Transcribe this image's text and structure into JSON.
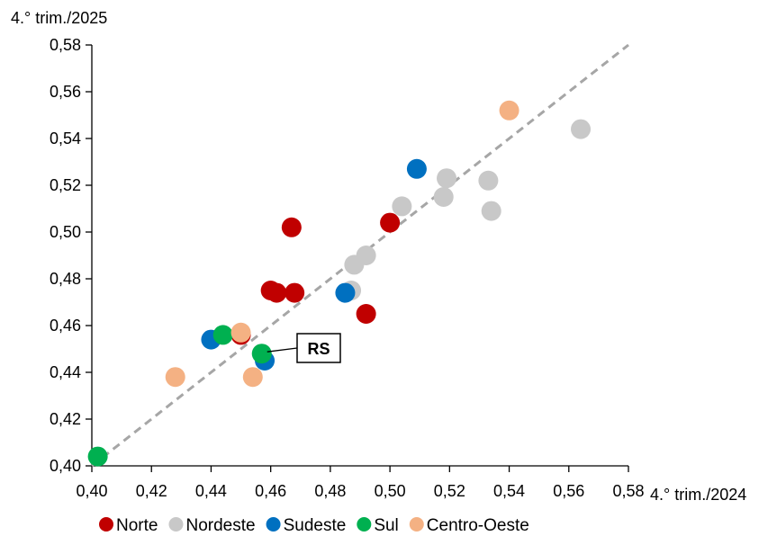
{
  "chart_data": {
    "type": "scatter",
    "xlabel": "4.° trim./2024",
    "ylabel": "4.° trim./2025",
    "xlim": [
      0.4,
      0.58
    ],
    "ylim": [
      0.4,
      0.58
    ],
    "x_ticks": [
      "0,40",
      "0,42",
      "0,44",
      "0,46",
      "0,48",
      "0,50",
      "0,52",
      "0,54",
      "0,56",
      "0,58"
    ],
    "y_ticks": [
      "0,40",
      "0,42",
      "0,44",
      "0,46",
      "0,48",
      "0,50",
      "0,52",
      "0,54",
      "0,56",
      "0,58"
    ],
    "grid": false,
    "reference_line": "y = x (dashed)",
    "legend_position": "bottom",
    "series": [
      {
        "name": "Norte",
        "color": "#c00000",
        "points": [
          {
            "x": 0.467,
            "y": 0.502
          },
          {
            "x": 0.5,
            "y": 0.504
          },
          {
            "x": 0.46,
            "y": 0.475
          },
          {
            "x": 0.462,
            "y": 0.474
          },
          {
            "x": 0.468,
            "y": 0.474
          },
          {
            "x": 0.492,
            "y": 0.465
          },
          {
            "x": 0.45,
            "y": 0.456
          }
        ]
      },
      {
        "name": "Nordeste",
        "color": "#c8c8c8",
        "points": [
          {
            "x": 0.564,
            "y": 0.544
          },
          {
            "x": 0.519,
            "y": 0.523
          },
          {
            "x": 0.533,
            "y": 0.522
          },
          {
            "x": 0.518,
            "y": 0.515
          },
          {
            "x": 0.534,
            "y": 0.509
          },
          {
            "x": 0.504,
            "y": 0.511
          },
          {
            "x": 0.492,
            "y": 0.49
          },
          {
            "x": 0.488,
            "y": 0.486
          },
          {
            "x": 0.487,
            "y": 0.475
          }
        ]
      },
      {
        "name": "Sudeste",
        "color": "#0070c0",
        "points": [
          {
            "x": 0.509,
            "y": 0.527
          },
          {
            "x": 0.485,
            "y": 0.474
          },
          {
            "x": 0.44,
            "y": 0.454
          },
          {
            "x": 0.458,
            "y": 0.445
          }
        ]
      },
      {
        "name": "Sul",
        "color": "#00b050",
        "points": [
          {
            "x": 0.444,
            "y": 0.456
          },
          {
            "x": 0.457,
            "y": 0.448
          },
          {
            "x": 0.402,
            "y": 0.404
          }
        ]
      },
      {
        "name": "Centro-Oeste",
        "color": "#f4b183",
        "points": [
          {
            "x": 0.54,
            "y": 0.552
          },
          {
            "x": 0.45,
            "y": 0.457
          },
          {
            "x": 0.428,
            "y": 0.438
          },
          {
            "x": 0.454,
            "y": 0.438
          }
        ]
      }
    ],
    "annotations": [
      {
        "text": "RS",
        "x": 0.457,
        "y": 0.448
      }
    ]
  }
}
